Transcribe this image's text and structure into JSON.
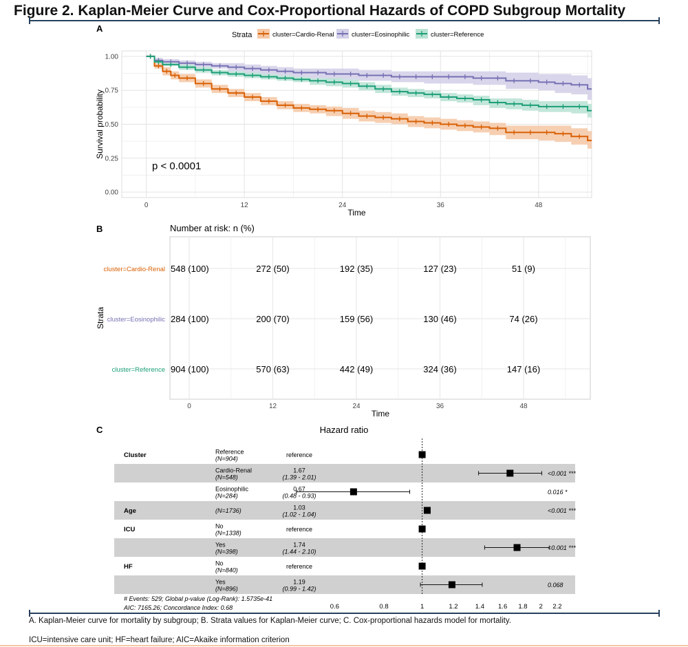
{
  "figure_title": "Figure 2. Kaplan-Meier Curve and Cox-Proportional Hazards of COPD Subgroup Mortality",
  "captions": [
    "A. Kaplan-Meier curve for mortality by subgroup; B. Strata values for Kaplan-Meier curve; C. Cox-proportional hazards model for mortality.",
    "ICU=intensive care unit; HF=heart failure; AIC=Akaike information criterion"
  ],
  "colors": {
    "cardio": "#d95f02",
    "eos": "#7570b3",
    "ref": "#1b9e77",
    "cardio_band": "#f5c7a4",
    "eos_band": "#d2cfe8",
    "ref_band": "#b9e2d3"
  },
  "chart_data": [
    {
      "panel": "A",
      "type": "line",
      "legend_title": "Strata",
      "legend_position": "top",
      "xlabel": "Time",
      "ylabel": "Survival probability",
      "xlim": [
        -3,
        54.5
      ],
      "ylim": [
        -0.04,
        1.04
      ],
      "x_ticks": [
        0,
        12,
        24,
        36,
        48
      ],
      "y_ticks": [
        0.0,
        0.25,
        0.5,
        0.75,
        1.0
      ],
      "y_tick_labels": [
        "0.00",
        "0.25",
        "0.50",
        "0.75",
        "1.00"
      ],
      "grid": true,
      "annotation": "p < 0.0001",
      "series": [
        {
          "name": "cluster=Cardio-Renal",
          "color_key": "cardio",
          "x": [
            0,
            1,
            2,
            3,
            4,
            6,
            8,
            10,
            12,
            14,
            16,
            18,
            20,
            22,
            24,
            26,
            28,
            30,
            32,
            34,
            36,
            38,
            40,
            42,
            44,
            46,
            48,
            50,
            52,
            54
          ],
          "y": [
            1.0,
            0.93,
            0.89,
            0.86,
            0.84,
            0.8,
            0.76,
            0.73,
            0.7,
            0.67,
            0.64,
            0.62,
            0.61,
            0.6,
            0.58,
            0.56,
            0.55,
            0.54,
            0.52,
            0.51,
            0.5,
            0.49,
            0.48,
            0.47,
            0.44,
            0.44,
            0.44,
            0.43,
            0.41,
            0.38
          ],
          "lower": [
            1.0,
            0.91,
            0.86,
            0.83,
            0.81,
            0.77,
            0.73,
            0.7,
            0.67,
            0.64,
            0.61,
            0.59,
            0.58,
            0.56,
            0.54,
            0.52,
            0.51,
            0.5,
            0.48,
            0.47,
            0.46,
            0.45,
            0.44,
            0.42,
            0.39,
            0.39,
            0.38,
            0.37,
            0.35,
            0.32
          ],
          "upper": [
            1.0,
            0.95,
            0.92,
            0.89,
            0.87,
            0.83,
            0.79,
            0.76,
            0.73,
            0.7,
            0.67,
            0.65,
            0.64,
            0.63,
            0.62,
            0.6,
            0.59,
            0.58,
            0.56,
            0.55,
            0.54,
            0.53,
            0.52,
            0.51,
            0.49,
            0.49,
            0.49,
            0.49,
            0.47,
            0.45
          ]
        },
        {
          "name": "cluster=Eosinophilic",
          "color_key": "eos",
          "x": [
            0,
            1,
            2,
            4,
            6,
            8,
            10,
            12,
            14,
            16,
            18,
            20,
            22,
            24,
            26,
            28,
            30,
            32,
            34,
            36,
            38,
            40,
            42,
            44,
            46,
            48,
            50,
            52,
            54
          ],
          "y": [
            1.0,
            0.97,
            0.96,
            0.95,
            0.94,
            0.93,
            0.92,
            0.91,
            0.9,
            0.89,
            0.88,
            0.88,
            0.87,
            0.87,
            0.86,
            0.86,
            0.85,
            0.85,
            0.85,
            0.85,
            0.85,
            0.84,
            0.84,
            0.82,
            0.82,
            0.81,
            0.8,
            0.79,
            0.76
          ],
          "lower": [
            1.0,
            0.95,
            0.94,
            0.93,
            0.92,
            0.91,
            0.89,
            0.88,
            0.87,
            0.86,
            0.85,
            0.84,
            0.83,
            0.83,
            0.82,
            0.82,
            0.81,
            0.81,
            0.8,
            0.8,
            0.8,
            0.79,
            0.79,
            0.76,
            0.76,
            0.75,
            0.73,
            0.72,
            0.68
          ],
          "upper": [
            1.0,
            0.99,
            0.98,
            0.97,
            0.96,
            0.95,
            0.95,
            0.94,
            0.93,
            0.92,
            0.91,
            0.91,
            0.91,
            0.91,
            0.9,
            0.9,
            0.89,
            0.89,
            0.89,
            0.89,
            0.89,
            0.89,
            0.89,
            0.88,
            0.88,
            0.87,
            0.87,
            0.86,
            0.84
          ]
        },
        {
          "name": "cluster=Reference",
          "color_key": "ref",
          "x": [
            0,
            1,
            2,
            4,
            6,
            8,
            10,
            12,
            14,
            16,
            18,
            20,
            22,
            24,
            26,
            28,
            30,
            32,
            34,
            36,
            38,
            40,
            42,
            44,
            46,
            48,
            50,
            52,
            54
          ],
          "y": [
            1.0,
            0.96,
            0.94,
            0.92,
            0.9,
            0.88,
            0.87,
            0.86,
            0.85,
            0.84,
            0.83,
            0.82,
            0.81,
            0.8,
            0.78,
            0.76,
            0.74,
            0.73,
            0.72,
            0.7,
            0.69,
            0.68,
            0.66,
            0.65,
            0.64,
            0.63,
            0.63,
            0.63,
            0.6
          ],
          "lower": [
            1.0,
            0.95,
            0.93,
            0.9,
            0.88,
            0.86,
            0.85,
            0.84,
            0.83,
            0.82,
            0.81,
            0.79,
            0.78,
            0.77,
            0.75,
            0.73,
            0.71,
            0.7,
            0.69,
            0.67,
            0.66,
            0.64,
            0.62,
            0.61,
            0.6,
            0.59,
            0.59,
            0.58,
            0.55
          ],
          "upper": [
            1.0,
            0.97,
            0.95,
            0.94,
            0.92,
            0.9,
            0.89,
            0.88,
            0.87,
            0.86,
            0.85,
            0.84,
            0.84,
            0.83,
            0.81,
            0.79,
            0.77,
            0.76,
            0.75,
            0.73,
            0.72,
            0.71,
            0.69,
            0.69,
            0.68,
            0.67,
            0.67,
            0.67,
            0.65
          ]
        }
      ]
    },
    {
      "panel": "B",
      "type": "table",
      "title": "Number at risk: n (%)",
      "xlabel": "Time",
      "ylabel": "Strata",
      "x_ticks": [
        0,
        12,
        24,
        36,
        48
      ],
      "rows": [
        {
          "label": "cluster=Cardio-Renal",
          "color_key": "cardio",
          "values": [
            "548 (100)",
            "272 (50)",
            "192 (35)",
            "127 (23)",
            "51 (9)"
          ]
        },
        {
          "label": "cluster=Eosinophilic",
          "color_key": "eos",
          "values": [
            "284 (100)",
            "200 (70)",
            "159 (56)",
            "130 (46)",
            "74 (26)"
          ]
        },
        {
          "label": "cluster=Reference",
          "color_key": "ref",
          "values": [
            "904 (100)",
            "570 (63)",
            "442 (49)",
            "324 (36)",
            "147 (16)"
          ]
        }
      ]
    },
    {
      "panel": "C",
      "type": "scatter",
      "title": "Hazard ratio",
      "x_scale": "log",
      "x_ticks": [
        0.6,
        0.8,
        1,
        1.2,
        1.4,
        1.6,
        1.8,
        2,
        2.2
      ],
      "x_tick_labels": [
        "0.6",
        "0.8",
        "1",
        "1.2",
        "1.4",
        "1.6",
        "1.8",
        "2",
        "2.2"
      ],
      "xlim": [
        0.5,
        2.3
      ],
      "reference_line": 1,
      "rows": [
        {
          "group": "Cluster",
          "level": "Reference",
          "n": "(N=904)",
          "est": "reference",
          "ci": "",
          "hr": 1.0,
          "lo": null,
          "hi": null,
          "p": "",
          "shaded": false
        },
        {
          "group": "",
          "level": "Cardio-Renal",
          "n": "(N=548)",
          "est": "1.67",
          "ci": "(1.39 - 2.01)",
          "hr": 1.67,
          "lo": 1.39,
          "hi": 2.01,
          "p": "<0.001 ***",
          "shaded": true
        },
        {
          "group": "",
          "level": "Eosinophilic",
          "n": "(N=284)",
          "est": "0.67",
          "ci": "(0.48 - 0.93)",
          "hr": 0.67,
          "lo": 0.48,
          "hi": 0.93,
          "p": "0.016 *",
          "shaded": false
        },
        {
          "group": "Age",
          "level": "",
          "n": "(N=1736)",
          "est": "1.03",
          "ci": "(1.02 - 1.04)",
          "hr": 1.03,
          "lo": 1.02,
          "hi": 1.04,
          "p": "<0.001 ***",
          "shaded": true
        },
        {
          "group": "ICU",
          "level": "No",
          "n": "(N=1338)",
          "est": "reference",
          "ci": "",
          "hr": 1.0,
          "lo": null,
          "hi": null,
          "p": "",
          "shaded": false
        },
        {
          "group": "",
          "level": "Yes",
          "n": "(N=398)",
          "est": "1.74",
          "ci": "(1.44 - 2.10)",
          "hr": 1.74,
          "lo": 1.44,
          "hi": 2.1,
          "p": "<0.001 ***",
          "shaded": true
        },
        {
          "group": "HF",
          "level": "No",
          "n": "(N=840)",
          "est": "reference",
          "ci": "",
          "hr": 1.0,
          "lo": null,
          "hi": null,
          "p": "",
          "shaded": false
        },
        {
          "group": "",
          "level": "Yes",
          "n": "(N=896)",
          "est": "1.19",
          "ci": "(0.99 - 1.42)",
          "hr": 1.19,
          "lo": 0.99,
          "hi": 1.42,
          "p": "0.068",
          "shaded": true
        }
      ],
      "footnotes": [
        "# Events: 529; Global p-value (Log-Rank): 1.5735e-41",
        "AIC: 7165.26; Concordance Index: 0.68"
      ]
    }
  ],
  "panel_labels": [
    "A",
    "B",
    "C"
  ]
}
